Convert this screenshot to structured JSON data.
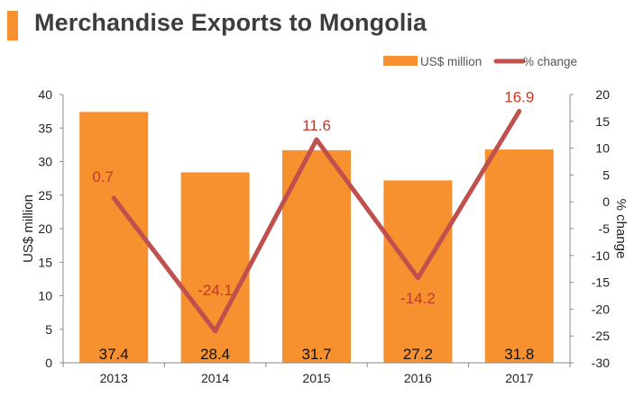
{
  "title": "Merchandise Exports to Mongolia",
  "colors": {
    "bar": "#f7902e",
    "line": "#c0504d",
    "pct_text": "#c0392b",
    "title_accent": "#f7902e"
  },
  "chart_data": {
    "type": "bar",
    "categories": [
      "2013",
      "2014",
      "2015",
      "2016",
      "2017"
    ],
    "series": [
      {
        "name": "US$ million",
        "type": "bar",
        "axis": "left",
        "values": [
          37.4,
          28.4,
          31.7,
          27.2,
          31.8
        ]
      },
      {
        "name": "% change",
        "type": "line",
        "axis": "right",
        "values": [
          0.7,
          -24.1,
          11.6,
          -14.2,
          16.9
        ]
      }
    ],
    "value_labels": {
      "bars": [
        "37.4",
        "28.4",
        "31.7",
        "27.2",
        "31.8"
      ],
      "line": [
        "0.7",
        "-24.1",
        "11.6",
        "-14.2",
        "16.9"
      ]
    },
    "ylabel": "US$ million",
    "y2label": "% change",
    "ylim": [
      0,
      40
    ],
    "y2lim": [
      -30,
      20
    ],
    "yticks": [
      "0",
      "5",
      "10",
      "15",
      "20",
      "25",
      "30",
      "35",
      "40"
    ],
    "y2ticks": [
      "-30",
      "-25",
      "-20",
      "-15",
      "-10",
      "-5",
      "0",
      "5",
      "10",
      "15",
      "20"
    ],
    "legend": [
      "US$ million",
      "% change"
    ],
    "legend_position": "top-right",
    "grid": false
  }
}
